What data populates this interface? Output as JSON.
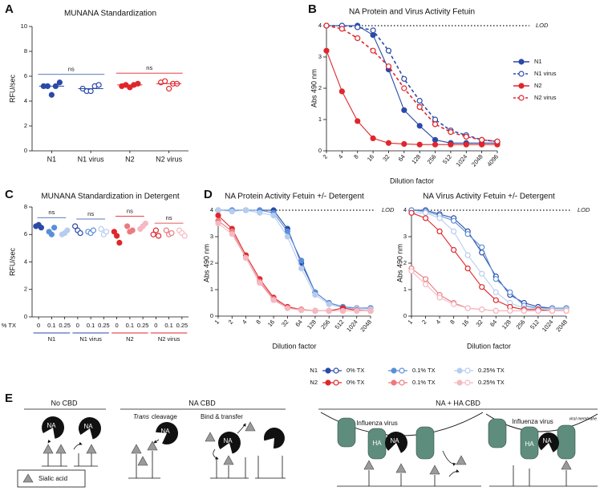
{
  "panel_labels": [
    "A",
    "B",
    "C",
    "D",
    "E"
  ],
  "chart_data": [
    {
      "type": "strip",
      "title": "MUNANA Standardization",
      "y_label": "RFU/sec",
      "ylim": [
        0,
        10
      ],
      "yticks": [
        0,
        2,
        4,
        6,
        8,
        10
      ],
      "categories": [
        "N1",
        "N1 virus",
        "N2",
        "N2 virus"
      ],
      "values": [
        [
          5.2,
          5.2,
          4.5,
          5.2,
          5.5
        ],
        [
          5.0,
          4.8,
          4.8,
          5.2,
          5.3
        ],
        [
          5.2,
          5.3,
          5.1,
          5.3,
          5.4
        ],
        [
          5.5,
          5.6,
          5.0,
          5.4,
          5.4
        ]
      ],
      "colors": [
        "#2b4aa8",
        "#2b4aa8",
        "#e0262b",
        "#e0262b"
      ],
      "markers": [
        "filled",
        "open",
        "filled",
        "open"
      ],
      "median_line": true,
      "comparisons": [
        {
          "label": "ns",
          "color": "#2b4aa8"
        },
        {
          "label": "ns",
          "color": "#e0262b"
        }
      ]
    },
    {
      "type": "line",
      "title": "NA Protein and Virus Activity Fetuin",
      "x_label": "Dilution factor",
      "y_label": "Abs 490 nm",
      "xscale": "log2",
      "x": [
        2,
        4,
        8,
        16,
        32,
        64,
        128,
        256,
        512,
        1024,
        2048,
        4096
      ],
      "xlim": [
        2,
        4096
      ],
      "xticks": [
        2,
        4,
        8,
        16,
        32,
        64,
        128,
        256,
        512,
        1024,
        2048,
        4096
      ],
      "ylim": [
        0,
        4
      ],
      "yticks": [
        0,
        1,
        2,
        3,
        4
      ],
      "lod": {
        "value": 4,
        "label": "LOD"
      },
      "legend": "right",
      "series": [
        {
          "name": "N1",
          "color": "#2b4aa8",
          "marker": "filled",
          "dash": false,
          "values": [
            4.0,
            4.0,
            4.0,
            3.7,
            2.6,
            1.3,
            0.8,
            0.35,
            0.25,
            0.25,
            0.25,
            0.25
          ]
        },
        {
          "name": "N1 virus",
          "color": "#2b4aa8",
          "marker": "open",
          "dash": true,
          "values": [
            4.0,
            4.0,
            3.95,
            3.85,
            3.2,
            2.3,
            1.6,
            1.0,
            0.65,
            0.5,
            0.35,
            0.3
          ]
        },
        {
          "name": "N2",
          "color": "#e0262b",
          "marker": "filled",
          "dash": false,
          "values": [
            3.2,
            1.9,
            0.95,
            0.4,
            0.25,
            0.22,
            0.2,
            0.2,
            0.2,
            0.2,
            0.2,
            0.2
          ]
        },
        {
          "name": "N2 virus",
          "color": "#e0262b",
          "marker": "open",
          "dash": true,
          "values": [
            4.0,
            3.9,
            3.6,
            3.2,
            2.7,
            2.0,
            1.4,
            0.85,
            0.6,
            0.45,
            0.35,
            0.3
          ]
        }
      ]
    },
    {
      "type": "strip",
      "title": "MUNANA Standardization in Detergent",
      "y_label": "RFU/sec",
      "x_label": "% TX",
      "ylim": [
        0,
        8
      ],
      "yticks": [
        0,
        2,
        4,
        6,
        8
      ],
      "groups": [
        {
          "name": "N1",
          "color": "#2b4aa8",
          "marker": "filled",
          "comparison": "ns",
          "categories": [
            "0",
            "0.1",
            "0.25"
          ],
          "point_colors": [
            "#2b4aa8",
            "#5a8fd8",
            "#b7cdef"
          ],
          "values": [
            [
              6.6,
              6.7,
              6.5
            ],
            [
              6.2,
              6.0,
              6.5
            ],
            [
              6.0,
              6.1,
              6.3
            ]
          ]
        },
        {
          "name": "N1 virus",
          "color": "#2b4aa8",
          "marker": "open",
          "comparison": "ns",
          "categories": [
            "0",
            "0.1",
            "0.25"
          ],
          "point_colors": [
            "#2b4aa8",
            "#5a8fd8",
            "#b7cdef"
          ],
          "values": [
            [
              6.6,
              6.3,
              6.1
            ],
            [
              6.2,
              6.1,
              6.3
            ],
            [
              6.4,
              6.0,
              6.2
            ]
          ]
        },
        {
          "name": "N2",
          "color": "#e0262b",
          "marker": "filled",
          "comparison": "ns",
          "categories": [
            "0",
            "0.1",
            "0.25"
          ],
          "point_colors": [
            "#e0262b",
            "#ec7a7e",
            "#f4b9c2"
          ],
          "values": [
            [
              6.2,
              5.9,
              5.4
            ],
            [
              6.6,
              6.2,
              6.3
            ],
            [
              6.4,
              6.6,
              6.8
            ]
          ]
        },
        {
          "name": "N2 virus",
          "color": "#e0262b",
          "marker": "open",
          "comparison": "ns",
          "categories": [
            "0",
            "0.1",
            "0.25"
          ],
          "point_colors": [
            "#e0262b",
            "#ec7a7e",
            "#f4b9c2"
          ],
          "values": [
            [
              6.0,
              6.3,
              5.9
            ],
            [
              6.3,
              6.0,
              6.1
            ],
            [
              6.3,
              6.1,
              5.9
            ]
          ]
        }
      ]
    },
    {
      "type": "line",
      "title": "NA Protein Activity Fetuin +/- Detergent",
      "x_label": "Dilution factor",
      "y_label": "Abs 490 nm",
      "xscale": "log2",
      "x": [
        1,
        2,
        4,
        8,
        16,
        32,
        64,
        128,
        256,
        512,
        1024,
        2048
      ],
      "xlim": [
        1,
        2048
      ],
      "xticks": [
        1,
        2,
        4,
        8,
        16,
        32,
        64,
        128,
        256,
        512,
        1024,
        2048
      ],
      "ylim": [
        0,
        4
      ],
      "yticks": [
        0,
        1,
        2,
        3,
        4
      ],
      "lod": {
        "value": 4,
        "label": "LOD"
      },
      "legend": "bottom",
      "series": [
        {
          "name": "0% TX",
          "group": "N1",
          "color": "#2b4aa8",
          "marker": "filled",
          "dash": false,
          "values": [
            4.0,
            4.0,
            4.0,
            4.0,
            4.0,
            3.3,
            2.0,
            0.9,
            0.5,
            0.35,
            0.3,
            0.3
          ]
        },
        {
          "name": "0.1% TX",
          "group": "N1",
          "color": "#5a8fd8",
          "marker": "filled",
          "dash": false,
          "values": [
            4.0,
            4.0,
            4.0,
            4.0,
            3.9,
            3.2,
            2.1,
            0.9,
            0.5,
            0.35,
            0.3,
            0.28
          ]
        },
        {
          "name": "0.25% TX",
          "group": "N1",
          "color": "#b7cdef",
          "marker": "filled",
          "dash": false,
          "values": [
            4.0,
            3.95,
            4.0,
            3.9,
            3.8,
            3.0,
            1.8,
            0.8,
            0.45,
            0.3,
            0.28,
            0.27
          ]
        },
        {
          "name": "0% TX",
          "group": "N2",
          "color": "#e0262b",
          "marker": "filled",
          "dash": false,
          "values": [
            3.8,
            3.3,
            2.3,
            1.4,
            0.7,
            0.35,
            0.25,
            0.2,
            0.2,
            0.3,
            0.22,
            0.2
          ]
        },
        {
          "name": "0.1% TX",
          "group": "N2",
          "color": "#ec7a7e",
          "marker": "filled",
          "dash": false,
          "values": [
            3.6,
            3.2,
            2.2,
            1.3,
            0.65,
            0.3,
            0.25,
            0.2,
            0.2,
            0.2,
            0.2,
            0.2
          ]
        },
        {
          "name": "0.25% TX",
          "group": "N2",
          "color": "#f4b9c2",
          "marker": "filled",
          "dash": false,
          "values": [
            3.5,
            3.1,
            2.2,
            1.25,
            0.6,
            0.3,
            0.22,
            0.2,
            0.2,
            0.2,
            0.2,
            0.2
          ]
        }
      ]
    },
    {
      "type": "line",
      "title": "NA Virus Activity Fetuin +/- Detergent",
      "x_label": "Dilution factor",
      "y_label": "Abs 490 nm",
      "xscale": "log2",
      "x": [
        1,
        2,
        4,
        8,
        16,
        32,
        64,
        128,
        256,
        512,
        1024,
        2048
      ],
      "xlim": [
        1,
        2048
      ],
      "xticks": [
        1,
        2,
        4,
        8,
        16,
        32,
        64,
        128,
        256,
        512,
        1024,
        2048
      ],
      "ylim": [
        0,
        4
      ],
      "yticks": [
        0,
        1,
        2,
        3,
        4
      ],
      "lod": {
        "value": 4,
        "label": "LOD"
      },
      "series": [
        {
          "color": "#2b4aa8",
          "marker": "open",
          "dash": false,
          "values": [
            4.0,
            4.0,
            3.85,
            3.7,
            3.2,
            2.4,
            1.5,
            0.8,
            0.5,
            0.35,
            0.3,
            0.3
          ]
        },
        {
          "color": "#5a8fd8",
          "marker": "open",
          "dash": false,
          "values": [
            4.0,
            3.95,
            3.8,
            3.6,
            3.1,
            2.6,
            1.4,
            0.9,
            0.4,
            0.3,
            0.3,
            0.3
          ]
        },
        {
          "color": "#b7cdef",
          "marker": "open",
          "dash": false,
          "values": [
            3.9,
            3.9,
            3.7,
            3.2,
            2.3,
            1.6,
            0.9,
            0.5,
            0.3,
            0.3,
            0.25,
            0.25
          ]
        },
        {
          "color": "#e0262b",
          "marker": "open",
          "dash": false,
          "values": [
            3.9,
            3.7,
            3.2,
            2.5,
            1.8,
            1.1,
            0.6,
            0.35,
            0.25,
            0.25,
            0.2,
            0.2
          ]
        },
        {
          "color": "#ec7a7e",
          "marker": "open",
          "dash": false,
          "values": [
            1.8,
            1.4,
            0.8,
            0.5,
            0.3,
            0.25,
            0.2,
            0.2,
            0.2,
            0.2,
            0.2,
            0.2
          ]
        },
        {
          "color": "#f4b9c2",
          "marker": "open",
          "dash": false,
          "values": [
            1.7,
            1.2,
            0.7,
            0.45,
            0.3,
            0.25,
            0.2,
            0.2,
            0.2,
            0.2,
            0.2,
            0.2
          ]
        }
      ]
    }
  ],
  "diagram": {
    "sections": [
      "No CBD",
      "NA CBD",
      "NA + HA CBD"
    ],
    "trans_cleavage": {
      "italic": "Trans",
      "rest": "cleavage"
    },
    "bind_transfer": "Bind & transfer",
    "virus_labels": [
      "Influenza virus",
      "Influenza virus"
    ],
    "membrane_label": "viral membrane",
    "na_labels": [
      "NA",
      "NA",
      "NA",
      "NA",
      "NA",
      "NA"
    ],
    "ha_labels": [
      "HA",
      "HA"
    ],
    "legend": "Sialic acid"
  }
}
